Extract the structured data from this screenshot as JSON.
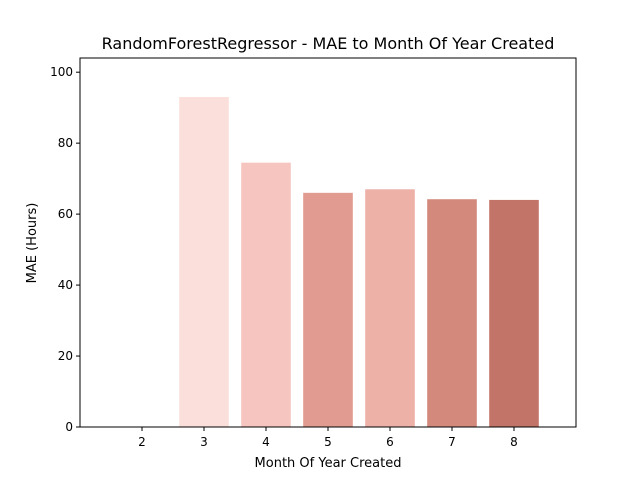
{
  "chart_data": {
    "type": "bar",
    "title": "RandomForestRegressor - MAE to Month Of Year Created",
    "xlabel": "Month Of Year Created",
    "ylabel": "MAE (Hours)",
    "categories": [
      "2",
      "3",
      "4",
      "5",
      "6",
      "7",
      "8"
    ],
    "values": [
      0,
      93,
      74.5,
      66,
      67,
      64.2,
      64
    ],
    "bar_colors": [
      "#f2b6ab",
      "#fbdfda",
      "#f6c5bf",
      "#e29b90",
      "#eeb1a8",
      "#d3897c",
      "#c37468"
    ],
    "xlim": [
      1,
      9
    ],
    "ylim": [
      0,
      104
    ],
    "yticks": [
      0,
      20,
      40,
      60,
      80,
      100
    ],
    "grid": false,
    "legend": "none"
  }
}
